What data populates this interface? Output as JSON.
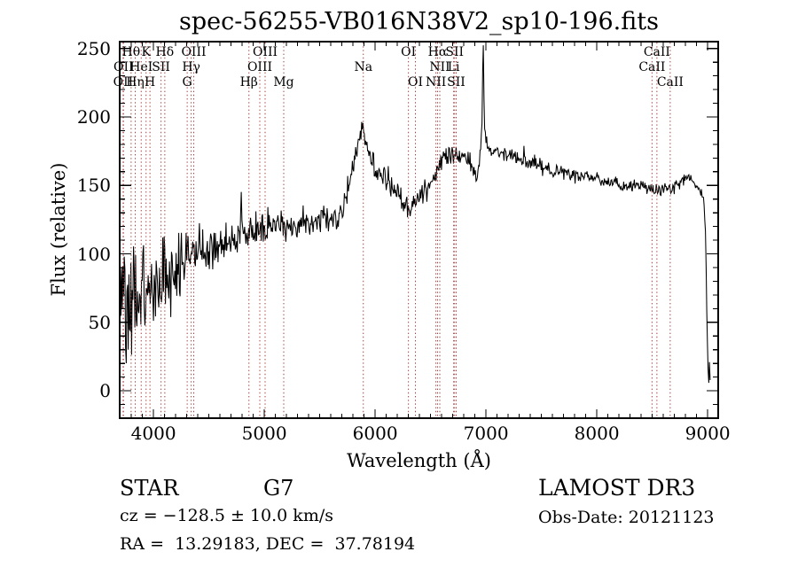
{
  "annotations": {
    "object_type": "STAR",
    "subclass": "G7",
    "cz": "cz = −128.5 ± 10.0 km/s",
    "ra_dec": "RA =  13.29183, DEC =  37.78194",
    "survey": "LAMOST DR3",
    "obs_date": "Obs-Date: 20121123"
  },
  "colors": {
    "spectral_marker": "#a53f3f",
    "trace": "#000000",
    "frame": "#000000",
    "background": "#ffffff"
  },
  "chart_data": {
    "type": "line",
    "title": "spec-56255-VB016N38V2_sp10-196.fits",
    "xlabel": "Wavelength (Å)",
    "ylabel": "Flux (relative)",
    "xlim": [
      3695,
      9095
    ],
    "ylim": [
      -20,
      255
    ],
    "x_ticks": [
      4000,
      5000,
      6000,
      7000,
      8000,
      9000
    ],
    "y_ticks": [
      0,
      50,
      100,
      150,
      200,
      250
    ],
    "x_minor_step": 100,
    "y_minor_step": 10,
    "sample_step": 6,
    "spectral_lines": [
      {
        "label": "OII",
        "wavelength": 3726,
        "row": 3
      },
      {
        "label": "OII",
        "wavelength": 3729,
        "row": 2
      },
      {
        "label": "Hθ",
        "wavelength": 3798,
        "row": 1
      },
      {
        "label": "Hη",
        "wavelength": 3835,
        "row": 3
      },
      {
        "label": "HeI",
        "wavelength": 3889,
        "row": 2
      },
      {
        "label": "K",
        "wavelength": 3933,
        "row": 1
      },
      {
        "label": "H",
        "wavelength": 3968,
        "row": 3
      },
      {
        "label": "SII",
        "wavelength": 4068,
        "row": 2
      },
      {
        "label": "Hδ",
        "wavelength": 4102,
        "row": 1
      },
      {
        "label": "G",
        "wavelength": 4304,
        "row": 3
      },
      {
        "label": "Hγ",
        "wavelength": 4340,
        "row": 2
      },
      {
        "label": "OIII",
        "wavelength": 4363,
        "row": 1
      },
      {
        "label": "Hβ",
        "wavelength": 4861,
        "row": 3
      },
      {
        "label": "OIII",
        "wavelength": 4959,
        "row": 2
      },
      {
        "label": "OIII",
        "wavelength": 5007,
        "row": 1
      },
      {
        "label": "Mg",
        "wavelength": 5175,
        "row": 3
      },
      {
        "label": "Na",
        "wavelength": 5893,
        "row": 2
      },
      {
        "label": "OI",
        "wavelength": 6300,
        "row": 1
      },
      {
        "label": "OI",
        "wavelength": 6363,
        "row": 3
      },
      {
        "label": "NII",
        "wavelength": 6548,
        "row": 3
      },
      {
        "label": "Hα",
        "wavelength": 6563,
        "row": 1
      },
      {
        "label": "NII",
        "wavelength": 6583,
        "row": 2
      },
      {
        "label": "Li",
        "wavelength": 6708,
        "row": 2
      },
      {
        "label": "SII",
        "wavelength": 6717,
        "row": 1
      },
      {
        "label": "SII",
        "wavelength": 6731,
        "row": 3
      },
      {
        "label": "CaII",
        "wavelength": 8498,
        "row": 2
      },
      {
        "label": "CaII",
        "wavelength": 8542,
        "row": 1
      },
      {
        "label": "CaII",
        "wavelength": 8662,
        "row": 3
      }
    ],
    "baseline": [
      [
        3700,
        58
      ],
      [
        3720,
        62
      ],
      [
        3740,
        60
      ],
      [
        3770,
        63
      ],
      [
        3800,
        65
      ],
      [
        3850,
        67
      ],
      [
        3900,
        70
      ],
      [
        3950,
        72
      ],
      [
        4000,
        75
      ],
      [
        4050,
        79
      ],
      [
        4100,
        83
      ],
      [
        4150,
        85
      ],
      [
        4200,
        88
      ],
      [
        4250,
        92
      ],
      [
        4300,
        95
      ],
      [
        4350,
        98
      ],
      [
        4400,
        100
      ],
      [
        4450,
        102
      ],
      [
        4500,
        103
      ],
      [
        4550,
        105
      ],
      [
        4600,
        106
      ],
      [
        4650,
        108
      ],
      [
        4700,
        109
      ],
      [
        4750,
        111
      ],
      [
        4780,
        112
      ],
      [
        4790,
        147
      ],
      [
        4800,
        113
      ],
      [
        4861,
        112
      ],
      [
        4900,
        117
      ],
      [
        4950,
        120
      ],
      [
        5000,
        122
      ],
      [
        5100,
        122
      ],
      [
        5175,
        120
      ],
      [
        5250,
        121
      ],
      [
        5350,
        122
      ],
      [
        5450,
        123
      ],
      [
        5550,
        128
      ],
      [
        5620,
        122
      ],
      [
        5650,
        124
      ],
      [
        5700,
        132
      ],
      [
        5750,
        145
      ],
      [
        5800,
        165
      ],
      [
        5850,
        181
      ],
      [
        5880,
        191
      ],
      [
        5895,
        193
      ],
      [
        5910,
        186
      ],
      [
        5930,
        178
      ],
      [
        5960,
        168
      ],
      [
        6000,
        160
      ],
      [
        6050,
        155
      ],
      [
        6100,
        157
      ],
      [
        6150,
        150
      ],
      [
        6200,
        143
      ],
      [
        6250,
        137
      ],
      [
        6300,
        134
      ],
      [
        6350,
        137
      ],
      [
        6400,
        141
      ],
      [
        6450,
        146
      ],
      [
        6500,
        152
      ],
      [
        6550,
        158
      ],
      [
        6563,
        164
      ],
      [
        6600,
        168
      ],
      [
        6650,
        171
      ],
      [
        6700,
        172
      ],
      [
        6750,
        171
      ],
      [
        6800,
        170
      ],
      [
        6850,
        166
      ],
      [
        6890,
        159
      ],
      [
        6915,
        153
      ],
      [
        6940,
        167
      ],
      [
        6955,
        178
      ],
      [
        6965,
        195
      ],
      [
        6972,
        248
      ],
      [
        6976,
        255
      ],
      [
        6980,
        213
      ],
      [
        6986,
        194
      ],
      [
        6995,
        183
      ],
      [
        7010,
        178
      ],
      [
        7050,
        176
      ],
      [
        7100,
        175
      ],
      [
        7200,
        172
      ],
      [
        7300,
        170
      ],
      [
        7400,
        167
      ],
      [
        7500,
        164
      ],
      [
        7600,
        161
      ],
      [
        7700,
        159
      ],
      [
        7800,
        158
      ],
      [
        7900,
        156
      ],
      [
        8000,
        155
      ],
      [
        8100,
        153
      ],
      [
        8200,
        151
      ],
      [
        8300,
        149
      ],
      [
        8400,
        150
      ],
      [
        8450,
        148
      ],
      [
        8500,
        146
      ],
      [
        8550,
        147
      ],
      [
        8600,
        147
      ],
      [
        8650,
        146
      ],
      [
        8700,
        148
      ],
      [
        8750,
        152
      ],
      [
        8800,
        156
      ],
      [
        8850,
        154
      ],
      [
        8900,
        150
      ],
      [
        8940,
        146
      ],
      [
        8965,
        140
      ],
      [
        8980,
        115
      ],
      [
        8990,
        70
      ],
      [
        9000,
        25
      ],
      [
        9008,
        2
      ],
      [
        9016,
        20
      ],
      [
        9025,
        5
      ]
    ],
    "noise_profile": [
      [
        3700,
        50
      ],
      [
        3750,
        47
      ],
      [
        3800,
        42
      ],
      [
        3850,
        38
      ],
      [
        3900,
        35
      ],
      [
        3950,
        33
      ],
      [
        4000,
        30
      ],
      [
        4100,
        27
      ],
      [
        4200,
        24
      ],
      [
        4300,
        21
      ],
      [
        4400,
        18
      ],
      [
        4500,
        16
      ],
      [
        4600,
        14
      ],
      [
        4800,
        12
      ],
      [
        5000,
        11
      ],
      [
        5300,
        10
      ],
      [
        5600,
        9
      ],
      [
        5900,
        9
      ],
      [
        6200,
        9
      ],
      [
        6500,
        8
      ],
      [
        6800,
        7
      ],
      [
        6960,
        7
      ],
      [
        7010,
        6
      ],
      [
        7300,
        5.5
      ],
      [
        7600,
        5
      ],
      [
        8000,
        4.5
      ],
      [
        8500,
        4.5
      ],
      [
        8800,
        4
      ],
      [
        8960,
        3.5
      ],
      [
        9000,
        3
      ],
      [
        9025,
        2
      ]
    ]
  }
}
